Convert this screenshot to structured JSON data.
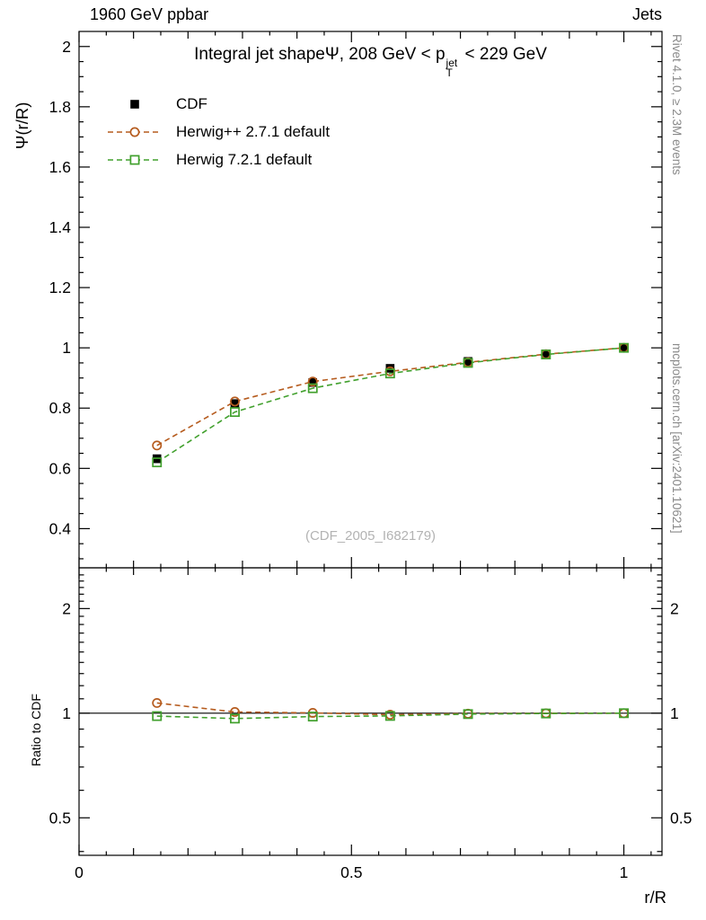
{
  "header": {
    "left": "1960 GeV ppbar",
    "right": "Jets"
  },
  "side_notes": {
    "top": "Rivet 4.1.0, ≥ 2.3M events",
    "bottom": "mcplots.cern.ch [arXiv:2401.10621]"
  },
  "chart_data": {
    "type": "line",
    "title": {
      "prefix": "Integral jet shapeΨ, 208 GeV < p",
      "sup": "jet",
      "sub": "T",
      "suffix": " < 229 GeV"
    },
    "xlabel": "r/R",
    "ylabel": "Ψ(r/R)",
    "ratio_ylabel": "Ratio to CDF",
    "watermark": "(CDF_2005_I682179)",
    "x": [
      0.143,
      0.286,
      0.429,
      0.571,
      0.714,
      0.857,
      1.0
    ],
    "series": [
      {
        "name": "CDF",
        "color": "#000000",
        "marker": "filled-square",
        "line_style": "none",
        "values": [
          0.632,
          0.815,
          0.885,
          0.932,
          0.955,
          0.98,
          1.0
        ],
        "errors": [
          0.012,
          0.01,
          0.008,
          0.006,
          0.005,
          0.003,
          0.002
        ],
        "ratio": [
          1.0,
          1.0,
          1.0,
          1.0,
          1.0,
          1.0,
          1.0
        ]
      },
      {
        "name": "Herwig++ 2.7.1 default",
        "color": "#b65c1f",
        "marker": "open-circle",
        "line_style": "dashed",
        "values": [
          0.676,
          0.822,
          0.888,
          0.922,
          0.952,
          0.979,
          1.0
        ],
        "ratio": [
          1.07,
          1.008,
          1.002,
          0.99,
          0.997,
          0.999,
          1.0
        ]
      },
      {
        "name": "Herwig 7.2.1 default",
        "color": "#41a02d",
        "marker": "open-square",
        "line_style": "dashed",
        "values": [
          0.62,
          0.787,
          0.866,
          0.915,
          0.95,
          0.978,
          1.0
        ],
        "ratio": [
          0.981,
          0.965,
          0.978,
          0.982,
          0.994,
          0.998,
          1.0
        ]
      }
    ],
    "axes": {
      "xlim": [
        0,
        1.07
      ],
      "ylim": [
        0.27,
        2.05
      ],
      "ratio_ylim": [
        0.39,
        2.62
      ],
      "ratio_scale": "log2",
      "xticks": [
        0,
        0.5,
        1
      ],
      "xtick_labels": [
        "0",
        "0.5",
        "1"
      ],
      "yticks": [
        0.4,
        0.6,
        0.8,
        1,
        1.2,
        1.4,
        1.6,
        1.8,
        2
      ],
      "ytick_labels": [
        "0.4",
        "0.6",
        "0.8",
        "1",
        "1.2",
        "1.4",
        "1.6",
        "1.8",
        "2"
      ],
      "ratio_yticks": [
        0.5,
        1,
        2
      ],
      "ratio_ytick_labels": [
        "0.5",
        "1",
        "2"
      ],
      "ratio_minor_ticks": [
        0.4,
        0.6,
        0.7,
        0.8,
        0.9,
        1.1,
        1.2,
        1.3,
        1.4,
        1.5,
        1.6,
        1.7,
        1.8,
        1.9,
        2.1,
        2.2,
        2.3,
        2.4,
        2.5
      ],
      "grid": false,
      "legend_position": "top-left"
    }
  }
}
